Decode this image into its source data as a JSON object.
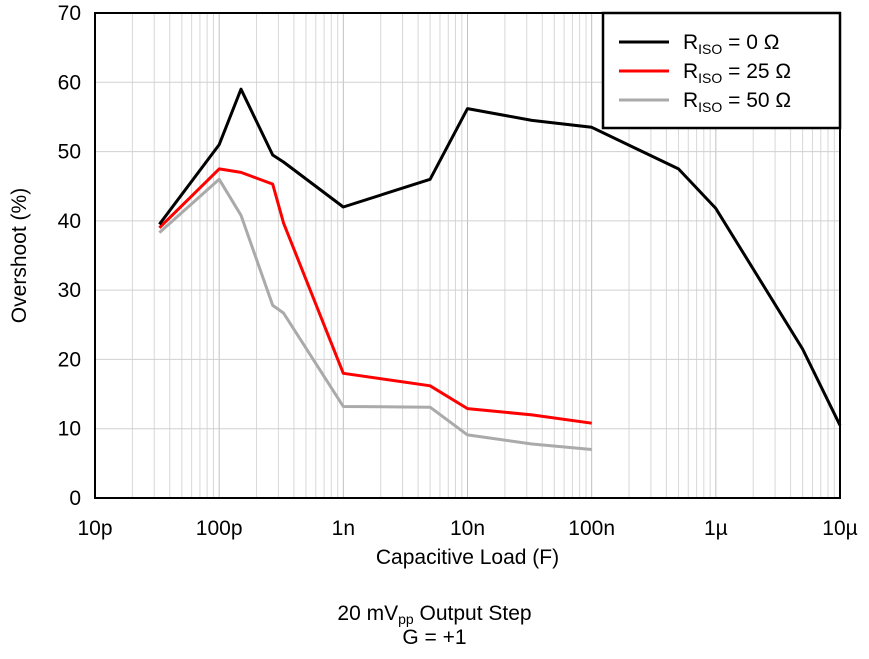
{
  "chart_data": {
    "type": "line",
    "xlabel": "Capacitive Load (F)",
    "ylabel": "Overshoot (%)",
    "xscale": "log",
    "xlim": [
      1e-11,
      1e-05
    ],
    "ylim": [
      0,
      70
    ],
    "grid": true,
    "legend_position": "top-right",
    "x_ticks": [
      {
        "value": 1e-11,
        "label": "10p"
      },
      {
        "value": 1e-10,
        "label": "100p"
      },
      {
        "value": 1e-09,
        "label": "1n"
      },
      {
        "value": 1e-08,
        "label": "10n"
      },
      {
        "value": 1e-07,
        "label": "100n"
      },
      {
        "value": 1e-06,
        "label": "1µ"
      },
      {
        "value": 1e-05,
        "label": "10µ"
      }
    ],
    "y_ticks": [
      0,
      10,
      20,
      30,
      40,
      50,
      60,
      70
    ],
    "series": [
      {
        "name": "RISO = 0 Ω",
        "legend_main": "R",
        "legend_sub": "ISO",
        "legend_rest": " = 0 Ω",
        "color": "#000000",
        "points": [
          [
            3.3e-11,
            39.5
          ],
          [
            1e-10,
            51
          ],
          [
            1.5e-10,
            59
          ],
          [
            2.7e-10,
            49.5
          ],
          [
            3.3e-10,
            48.5
          ],
          [
            1e-09,
            42
          ],
          [
            5e-09,
            46
          ],
          [
            1e-08,
            56.2
          ],
          [
            3.3e-08,
            54.5
          ],
          [
            1e-07,
            53.5
          ],
          [
            5e-07,
            47.5
          ],
          [
            1e-06,
            41.8
          ],
          [
            5e-06,
            21.5
          ],
          [
            1e-05,
            10.5
          ]
        ]
      },
      {
        "name": "RISO = 25 Ω",
        "legend_main": "R",
        "legend_sub": "ISO",
        "legend_rest": " = 25 Ω",
        "color": "#ff0000",
        "points": [
          [
            3.3e-11,
            39
          ],
          [
            1e-10,
            47.5
          ],
          [
            1.5e-10,
            47
          ],
          [
            2.7e-10,
            45.3
          ],
          [
            3.3e-10,
            39.7
          ],
          [
            1e-09,
            18
          ],
          [
            5e-09,
            16.2
          ],
          [
            1e-08,
            12.9
          ],
          [
            3.3e-08,
            12
          ],
          [
            1e-07,
            10.8
          ]
        ]
      },
      {
        "name": "RISO = 50 Ω",
        "legend_main": "R",
        "legend_sub": "ISO",
        "legend_rest": " = 50 Ω",
        "color": "#aaaaaa",
        "points": [
          [
            3.3e-11,
            38.3
          ],
          [
            1e-10,
            46
          ],
          [
            1.5e-10,
            40.8
          ],
          [
            2.7e-10,
            27.8
          ],
          [
            3.3e-10,
            26.7
          ],
          [
            1e-09,
            13.2
          ],
          [
            5e-09,
            13.1
          ],
          [
            1e-08,
            9.1
          ],
          [
            3.3e-08,
            7.8
          ],
          [
            1e-07,
            7
          ]
        ]
      }
    ],
    "caption": {
      "line1_pre": "20 mV",
      "line1_sub": "pp",
      "line1_post": " Output Step",
      "line2": "G = +1"
    }
  }
}
